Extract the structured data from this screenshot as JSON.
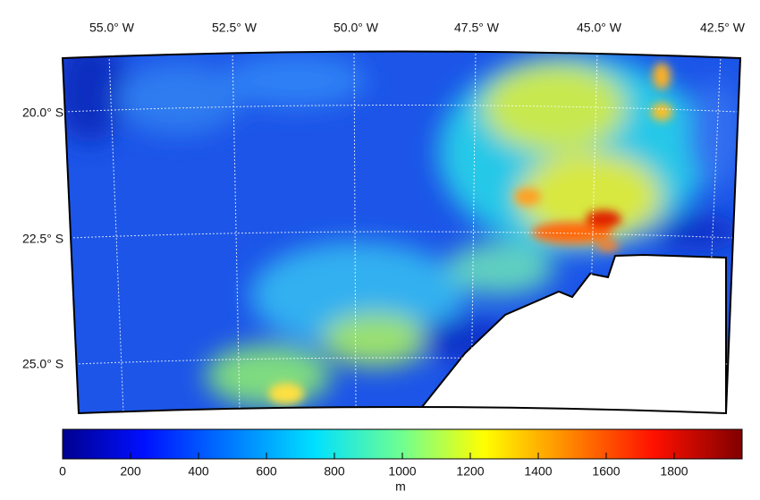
{
  "map": {
    "lon_labels": [
      "55.0° W",
      "52.5° W",
      "50.0° W",
      "47.5° W",
      "45.0° W",
      "42.5° W"
    ],
    "lat_labels": [
      "20.0° S",
      "22.5° S",
      "25.0° S"
    ]
  },
  "colorbar": {
    "label": "m",
    "lim": [
      0,
      2000
    ],
    "ticks": [
      0,
      200,
      400,
      600,
      800,
      1000,
      1200,
      1400,
      1600,
      1800
    ]
  }
}
